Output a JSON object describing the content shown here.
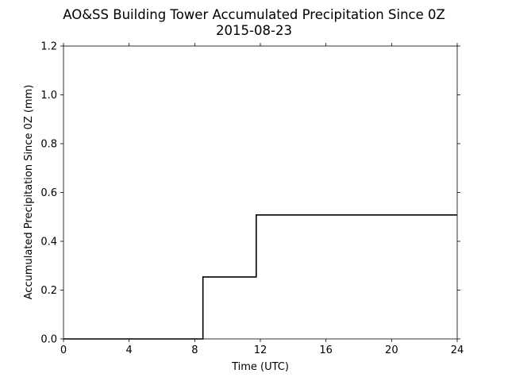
{
  "chart_data": {
    "type": "line",
    "title": "AO&SS Building Tower Accumulated Precipitation Since 0Z",
    "subtitle": "2015-08-23",
    "xlabel": "Time (UTC)",
    "ylabel": "Accumulated Precipitation Since 0Z (mm)",
    "xlim": [
      0,
      24
    ],
    "ylim": [
      0.0,
      1.2
    ],
    "x_ticks": [
      0,
      4,
      8,
      12,
      16,
      20,
      24
    ],
    "x_tick_labels": [
      "0",
      "4",
      "8",
      "12",
      "16",
      "20",
      "24"
    ],
    "y_ticks": [
      0.0,
      0.2,
      0.4,
      0.6,
      0.8,
      1.0,
      1.2
    ],
    "y_tick_labels": [
      "0.0",
      "0.2",
      "0.4",
      "0.6",
      "0.8",
      "1.0",
      "1.2"
    ],
    "grid": false,
    "line_color": "#000000",
    "series": [
      {
        "step": true,
        "x": [
          0,
          8.5,
          8.5,
          11.75,
          11.75,
          24
        ],
        "y": [
          0.0,
          0.0,
          0.254,
          0.254,
          0.508,
          0.508
        ]
      }
    ]
  }
}
